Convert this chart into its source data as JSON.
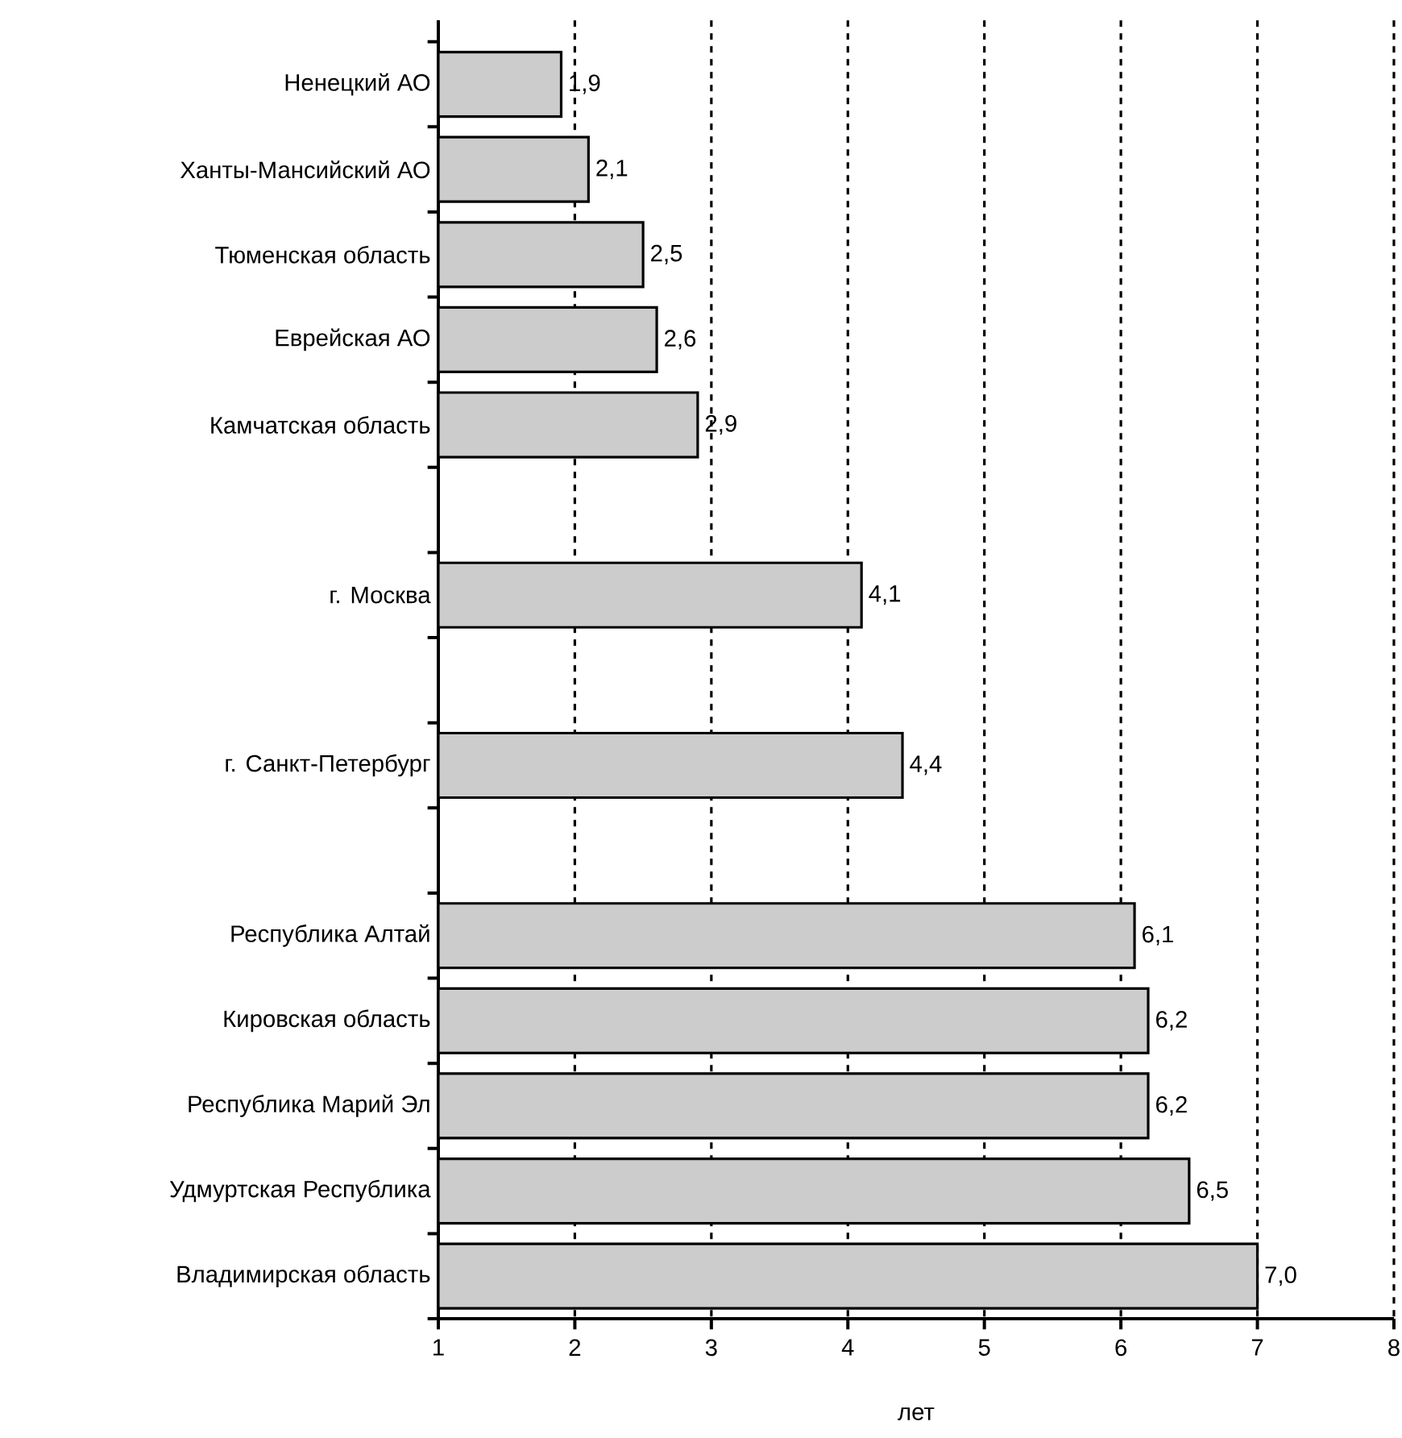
{
  "chart_data": {
    "type": "bar",
    "orientation": "horizontal",
    "xlabel": "лет",
    "categories": [
      "Ненецкий АО",
      "Ханты-Мансийский АО",
      "Тюменская область",
      "Еврейская АО",
      "Камчатская область",
      null,
      "г. Москва",
      null,
      "г. Санкт-Петербург",
      null,
      "Республика Алтай",
      "Кировская область",
      "Республика Марий Эл",
      "Удмуртская Республика",
      "Владимирская область"
    ],
    "values": [
      1.9,
      2.1,
      2.5,
      2.6,
      2.9,
      null,
      4.1,
      null,
      4.4,
      null,
      6.1,
      6.2,
      6.2,
      6.5,
      7.0
    ],
    "value_labels": [
      "1,9",
      "2,1",
      "2,5",
      "2,6",
      "2,9",
      null,
      "4,1",
      null,
      "4,4",
      null,
      "6,1",
      "6,2",
      "6,2",
      "6,5",
      "7,0"
    ],
    "color": "#cccccc",
    "xlim": [
      1,
      8
    ],
    "xticks": [
      1,
      2,
      3,
      4,
      5,
      6,
      7,
      8
    ],
    "grid": "x"
  }
}
